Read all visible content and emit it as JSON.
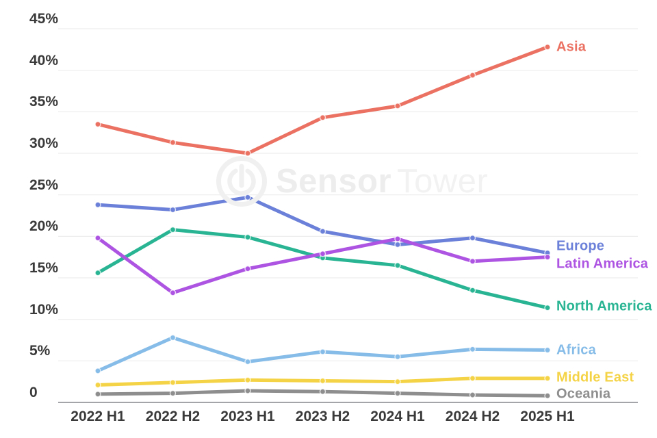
{
  "watermark": {
    "word1": "Sensor",
    "word2": "Tower",
    "logo": "sensor-tower-logo"
  },
  "axis": {
    "tick_color": "#3A3A3A",
    "grid_color": "#EDEDED",
    "zero_line_color": "#96989B"
  },
  "chart_data": {
    "type": "line",
    "categories": [
      "2022 H1",
      "2022 H2",
      "2023 H1",
      "2023 H2",
      "2024 H1",
      "2024 H2",
      "2025 H1"
    ],
    "y_ticks": {
      "values": [
        45,
        40,
        35,
        30,
        25,
        20,
        15,
        10,
        5,
        0
      ],
      "labels": [
        "45%",
        "40%",
        "35%",
        "30%",
        "25%",
        "20%",
        "15%",
        "10%",
        "5%",
        "0"
      ]
    },
    "ylim": [
      0,
      45
    ],
    "grid": true,
    "legend_position": "line-end-labels",
    "series": [
      {
        "name": "Asia",
        "color": "#EB7263",
        "values": [
          33.5,
          31.3,
          30.0,
          34.3,
          35.7,
          39.4,
          42.8
        ]
      },
      {
        "name": "Europe",
        "color": "#6B80D8",
        "values": [
          23.8,
          23.2,
          24.7,
          20.6,
          19.0,
          19.8,
          18.0
        ]
      },
      {
        "name": "Latin America",
        "color": "#AE54E2",
        "values": [
          19.8,
          13.2,
          16.1,
          17.9,
          19.7,
          17.0,
          17.5
        ]
      },
      {
        "name": "North America",
        "color": "#29B593",
        "values": [
          15.6,
          20.8,
          19.9,
          17.4,
          16.5,
          13.5,
          11.4
        ]
      },
      {
        "name": "Africa",
        "color": "#86BCE8",
        "values": [
          3.8,
          7.8,
          4.9,
          6.1,
          5.5,
          6.4,
          6.3
        ]
      },
      {
        "name": "Middle East",
        "color": "#F5D347",
        "values": [
          2.1,
          2.4,
          2.7,
          2.6,
          2.5,
          2.9,
          2.9
        ]
      },
      {
        "name": "Oceania",
        "color": "#8E8E8E",
        "values": [
          1.0,
          1.1,
          1.4,
          1.3,
          1.1,
          0.9,
          0.8
        ]
      }
    ]
  }
}
